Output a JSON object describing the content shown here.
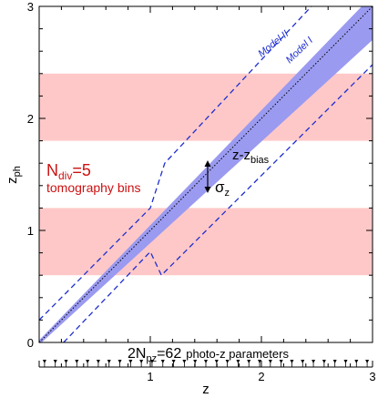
{
  "chart_data": {
    "type": "line",
    "xlabel": "z",
    "ylabel": "z",
    "ylabel_sub": "ph",
    "xlim": [
      0,
      3
    ],
    "ylim": [
      0,
      3
    ],
    "x_ticks": [
      0,
      1,
      2,
      3
    ],
    "y_ticks": [
      0,
      1,
      2,
      3
    ],
    "x_minor_step": 0.2,
    "y_minor_step": 0.2,
    "colors": {
      "band": "#ffc8c8",
      "wedge": "#9a9af0",
      "model": "#1f2fd0",
      "label_red": "#cc1111"
    },
    "shaded_bands": [
      [
        0.6,
        1.2
      ],
      [
        1.8,
        2.4
      ]
    ],
    "mean_relation": {
      "label": "z-z",
      "label_sub": "bias",
      "x": [
        0,
        3
      ],
      "y": [
        0,
        3
      ]
    },
    "scatter_band": {
      "label": "σ",
      "label_sub": "z",
      "x": [
        0,
        3
      ],
      "y_low": [
        -0.02,
        2.7
      ],
      "y_high": [
        0.02,
        3.1
      ]
    },
    "series": [
      {
        "name": "Model II",
        "x": [
          0,
          1.0,
          1.13,
          2.45
        ],
        "y": [
          0.2,
          1.2,
          1.6,
          3.0
        ]
      },
      {
        "name": "Model I",
        "x": [
          0.22,
          1.0,
          1.1,
          3.0
        ],
        "y": [
          0.0,
          0.81,
          0.6,
          2.48
        ]
      }
    ],
    "annotations": {
      "ndiv_main": "N",
      "ndiv_sub": "div",
      "ndiv_rest": "=5",
      "tomography": "tomography bins",
      "npz_main": "2N",
      "npz_sub": "pz",
      "npz_rest": "=62",
      "photoz_params": "photo-z parameters"
    },
    "photoz_marker_count": 62
  }
}
